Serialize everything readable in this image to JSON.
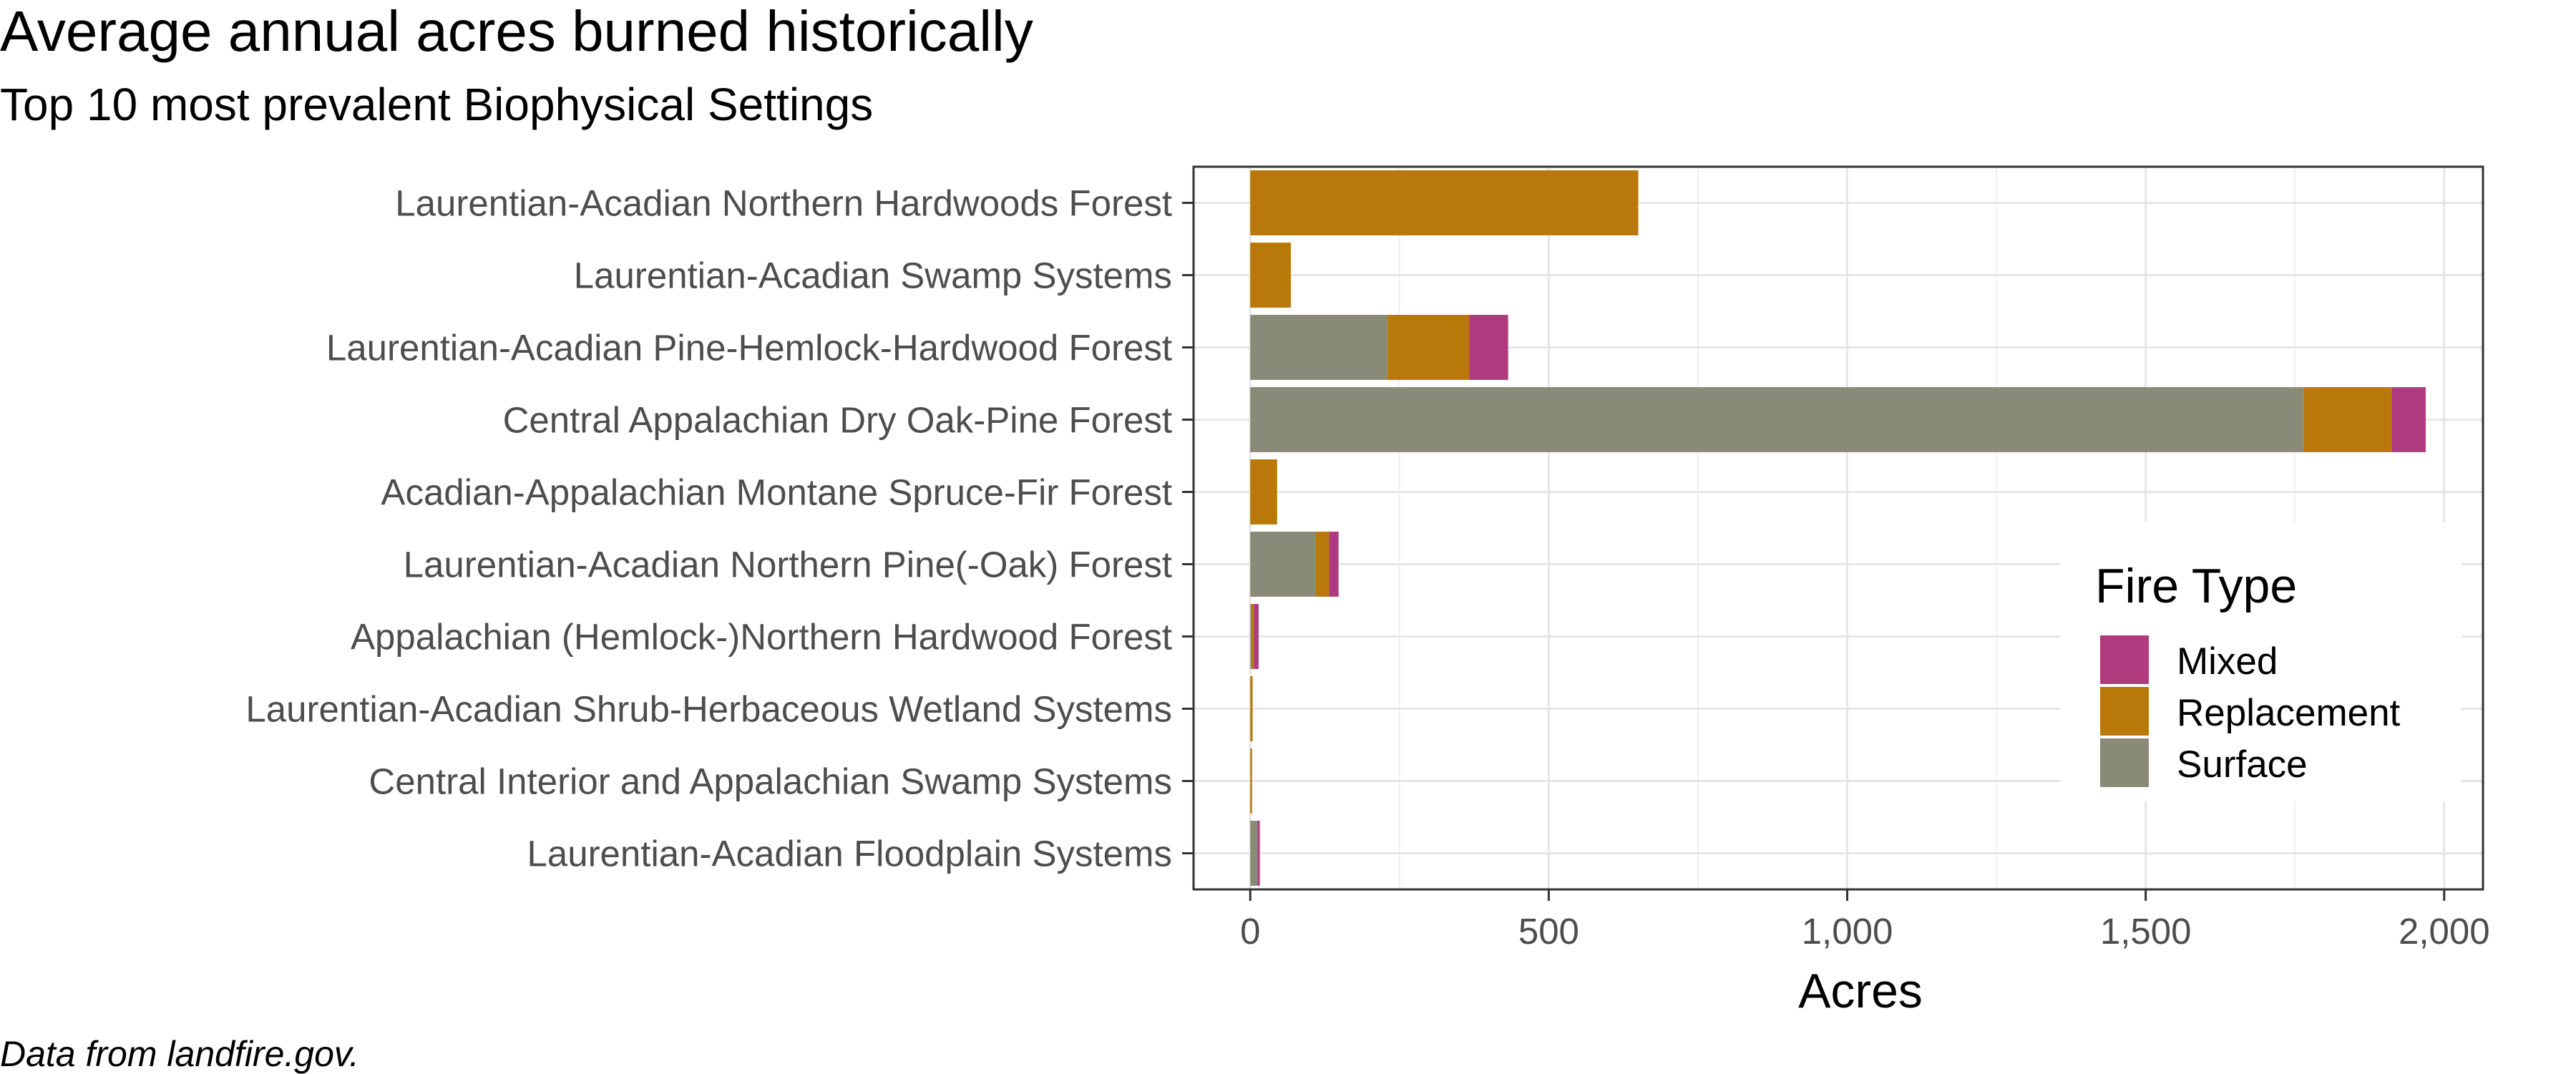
{
  "chart_data": {
    "type": "bar",
    "orientation": "horizontal",
    "stacked": true,
    "title": "Average annual acres burned historically",
    "subtitle": "Top 10 most prevalent Biophysical Settings",
    "caption": "Data from landfire.gov.",
    "xlabel": "Acres",
    "ylabel": "",
    "xlim": [
      -95,
      2065
    ],
    "x_ticks": [
      0,
      500,
      1000,
      1500,
      2000
    ],
    "x_tick_labels": [
      "0",
      "500",
      "1,000",
      "1,500",
      "2,000"
    ],
    "grid": true,
    "legend": {
      "title": "Fire Type",
      "position": "right-inside",
      "entries": [
        "Mixed",
        "Replacement",
        "Surface"
      ]
    },
    "colors": {
      "Mixed": "#b03a7e",
      "Replacement": "#b8790a",
      "Surface": "#8a8a78"
    },
    "categories": [
      "Laurentian-Acadian Northern Hardwoods Forest",
      "Laurentian-Acadian Swamp Systems",
      "Laurentian-Acadian Pine-Hemlock-Hardwood Forest",
      "Central Appalachian Dry Oak-Pine Forest",
      "Acadian-Appalachian Montane Spruce-Fir Forest",
      "Laurentian-Acadian Northern Pine(-Oak) Forest",
      "Appalachian (Hemlock-)Northern Hardwood Forest",
      "Laurentian-Acadian Shrub-Herbaceous Wetland Systems",
      "Central Interior and Appalachian Swamp Systems",
      "Laurentian-Acadian Floodplain Systems"
    ],
    "series": [
      {
        "name": "Surface",
        "values": [
          0,
          0,
          230,
          1765,
          0,
          110,
          2,
          0,
          0,
          12
        ]
      },
      {
        "name": "Replacement",
        "values": [
          650,
          68,
          137,
          147,
          45,
          22,
          4,
          4,
          3,
          0
        ]
      },
      {
        "name": "Mixed",
        "values": [
          0,
          0,
          65,
          57,
          0,
          16,
          8,
          0,
          0,
          4
        ]
      }
    ]
  }
}
